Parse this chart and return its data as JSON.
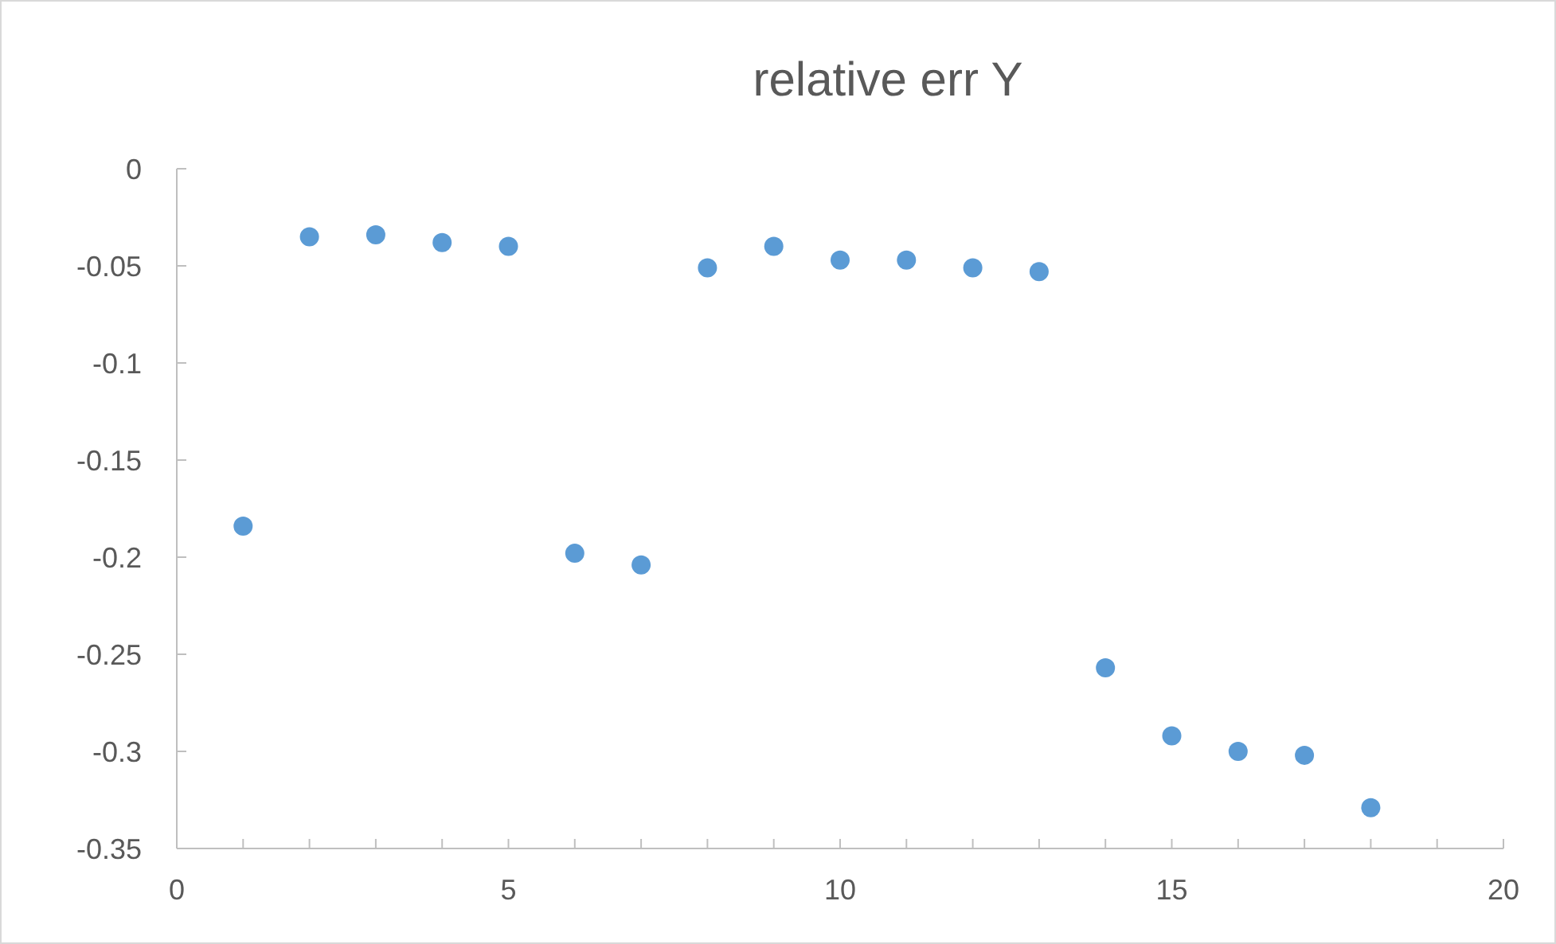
{
  "chart_data": {
    "type": "scatter",
    "title": "relative err Y",
    "x": [
      1,
      2,
      3,
      4,
      5,
      6,
      7,
      8,
      9,
      10,
      11,
      12,
      13,
      14,
      15,
      16,
      17,
      18
    ],
    "values": [
      -0.184,
      -0.035,
      -0.034,
      -0.038,
      -0.04,
      -0.198,
      -0.204,
      -0.051,
      -0.04,
      -0.047,
      -0.047,
      -0.051,
      -0.053,
      -0.257,
      -0.292,
      -0.3,
      -0.302,
      -0.329
    ],
    "color": "#5b9bd5",
    "marker": "circle",
    "grid": false,
    "xlim": [
      0,
      20
    ],
    "xticks": [
      0,
      {
        "value": 1,
        "label": null
      },
      {
        "value": 2,
        "label": null
      },
      {
        "value": 3,
        "label": null
      },
      {
        "value": 4,
        "label": null
      },
      5,
      {
        "value": 6,
        "label": null
      },
      {
        "value": 7,
        "label": null
      },
      {
        "value": 8,
        "label": null
      },
      {
        "value": 9,
        "label": null
      },
      10,
      {
        "value": 11,
        "label": null
      },
      {
        "value": 12,
        "label": null
      },
      {
        "value": 13,
        "label": null
      },
      {
        "value": 14,
        "label": null
      },
      15,
      {
        "value": 16,
        "label": null
      },
      {
        "value": 17,
        "label": null
      },
      {
        "value": 18,
        "label": null
      },
      {
        "value": 19,
        "label": null
      },
      20
    ],
    "ylim": [
      -0.35,
      0
    ],
    "yticks": [
      0,
      -0.05,
      -0.1,
      -0.15,
      -0.2,
      -0.25,
      -0.3,
      -0.35
    ]
  }
}
